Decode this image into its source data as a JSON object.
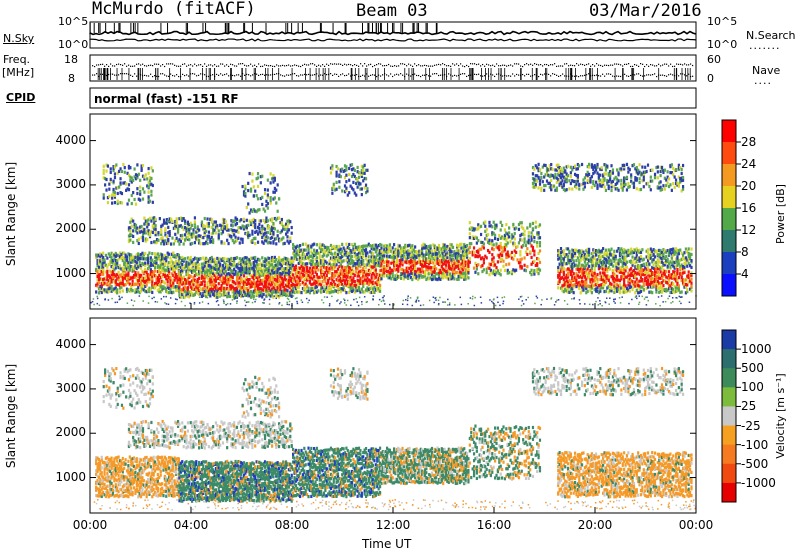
{
  "header": {
    "title": "McMurdo (fitACF)",
    "beam": "Beam 03",
    "date": "03/Mar/2016"
  },
  "status_panel": {
    "left_label_top": "N.Sky",
    "left_label_freq": "Freq.",
    "left_label_freq_unit": "[MHz]",
    "left_label_cpid": "CPID",
    "right_label_search": "N.Search",
    "right_label_nave": "Nave",
    "sky_ticks": [
      "10^5",
      "10^0"
    ],
    "freq_ticks": [
      "18",
      "8"
    ],
    "nave_ticks": [
      "60",
      "0"
    ],
    "cpid_text": "normal (fast) -151 RF"
  },
  "chart_data": [
    {
      "type": "heatmap",
      "name": "Power",
      "ylabel": "Slant Range [km]",
      "xlabel": "",
      "ylim": [
        200,
        4600
      ],
      "yticks": [
        "1000",
        "2000",
        "3000",
        "4000"
      ],
      "xticks": [],
      "colorbar": {
        "label": "Power [dB]",
        "ticks": [
          "28",
          "24",
          "20",
          "16",
          "12",
          "8",
          "4"
        ],
        "colors": [
          "#ff0000",
          "#ff4a10",
          "#f59a20",
          "#e6d020",
          "#53a848",
          "#2e7a6e",
          "#1c3fbf",
          "#0a10ff"
        ]
      },
      "colors": {
        "very_high": "#f21010",
        "high": "#f58a20",
        "mid": "#d7d732",
        "low": "#5aa550",
        "lowest": "#2c3ea8"
      }
    },
    {
      "type": "heatmap",
      "name": "Velocity",
      "ylabel": "Slant Range [km]",
      "xlabel": "Time UT",
      "ylim": [
        200,
        4600
      ],
      "yticks": [
        "1000",
        "2000",
        "3000",
        "4000"
      ],
      "xticks": [
        "00:00",
        "04:00",
        "08:00",
        "12:00",
        "16:00",
        "20:00",
        "00:00"
      ],
      "colorbar": {
        "label": "Velocity [m s⁻¹]",
        "ticks": [
          "1000",
          "500",
          "100",
          "25",
          "-25",
          "-100",
          "-500",
          "-1000"
        ],
        "colors": [
          "#1a3aa6",
          "#2d6f6f",
          "#3d8a5a",
          "#7dbb3c",
          "#c8c8c8",
          "#f5a020",
          "#f57a20",
          "#f04a10",
          "#e60000"
        ]
      },
      "colors": {
        "towards": "#3c8a68",
        "strong_towards": "#1e3cc8",
        "away": "#f59a28",
        "near_zero": "#c8c8c8"
      }
    }
  ]
}
